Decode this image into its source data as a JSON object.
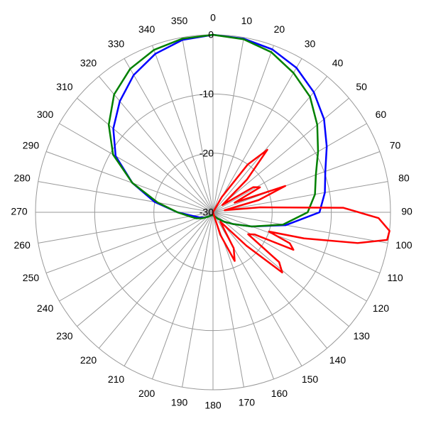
{
  "chart_data": {
    "type": "polar",
    "direction": "clockwise",
    "zero_location": "top",
    "rlim": [
      -30,
      0
    ],
    "rticks": [
      -30,
      -20,
      -10,
      0
    ],
    "thetaticks": [
      0,
      10,
      20,
      30,
      40,
      50,
      60,
      70,
      80,
      90,
      100,
      110,
      120,
      130,
      140,
      150,
      160,
      170,
      180,
      190,
      200,
      210,
      220,
      230,
      240,
      250,
      260,
      270,
      280,
      290,
      300,
      310,
      320,
      330,
      340,
      350
    ],
    "grid": true,
    "series": [
      {
        "color": "#0000ff",
        "theta": [
          0,
          10,
          20,
          30,
          40,
          50,
          60,
          70,
          80,
          90,
          100,
          110,
          120,
          130,
          140,
          150,
          160,
          170,
          180,
          190,
          200,
          210,
          220,
          230,
          240,
          250,
          260,
          270,
          280,
          290,
          300,
          310,
          320,
          330,
          340,
          350
        ],
        "values": [
          0,
          -0.2,
          -0.7,
          -1.8,
          -3.5,
          -5.5,
          -7.8,
          -9.8,
          -10.8,
          -12,
          -17.5,
          -23,
          -26,
          -27.5,
          -28.5,
          -29,
          -29.3,
          -29.5,
          -29.5,
          -29.5,
          -29.5,
          -29.4,
          -29.2,
          -28.8,
          -28.2,
          -27.5,
          -26.5,
          -24,
          -20,
          -15.5,
          -11,
          -8,
          -5.5,
          -3.2,
          -1.5,
          -0.4
        ]
      },
      {
        "color": "#008000",
        "theta": [
          0,
          10,
          20,
          30,
          40,
          50,
          60,
          70,
          80,
          90,
          100,
          110,
          120,
          130,
          140,
          150,
          160,
          170,
          180,
          190,
          200,
          210,
          220,
          230,
          240,
          250,
          260,
          270,
          280,
          290,
          300,
          310,
          320,
          330,
          340,
          350
        ],
        "values": [
          0,
          -0.3,
          -1.2,
          -2.8,
          -4.5,
          -7,
          -9.5,
          -11.5,
          -12.5,
          -14,
          -18,
          -23,
          -26,
          -27.5,
          -28.5,
          -29,
          -29.3,
          -29.5,
          -29.5,
          -29.5,
          -29.5,
          -29.4,
          -29.2,
          -28.8,
          -28,
          -27,
          -26,
          -24,
          -20.5,
          -15.5,
          -10.5,
          -7,
          -4,
          -2,
          -0.8,
          -0.2
        ]
      },
      {
        "color": "#ff0000",
        "theta": [
          0,
          20,
          30,
          36,
          41,
          46,
          52,
          58,
          62,
          66,
          70,
          75,
          80,
          84,
          88,
          92,
          96,
          99,
          102,
          106,
          109,
          112,
          115,
          118,
          122,
          127,
          131,
          135,
          142,
          150,
          156,
          162,
          170,
          180,
          270,
          359
        ],
        "values": [
          -30,
          -30,
          -27,
          -20,
          -16,
          -22,
          -28,
          -22,
          -21,
          -26,
          -17,
          -22,
          -28,
          -22,
          -8,
          -2,
          0,
          -0.2,
          -5,
          -14,
          -20,
          -16,
          -15,
          -22,
          -23,
          -16,
          -14.5,
          -22,
          -28,
          -23,
          -21,
          -26,
          -30,
          -30,
          -30,
          -30
        ]
      }
    ]
  }
}
